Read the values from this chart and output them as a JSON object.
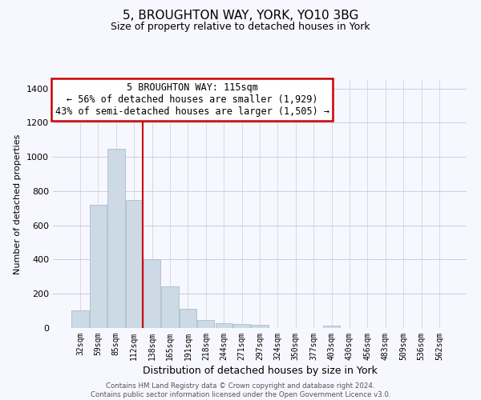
{
  "title": "5, BROUGHTON WAY, YORK, YO10 3BG",
  "subtitle": "Size of property relative to detached houses in York",
  "xlabel": "Distribution of detached houses by size in York",
  "ylabel": "Number of detached properties",
  "bar_color": "#cdd9e5",
  "bar_edge_color": "#a8bfcc",
  "categories": [
    "32sqm",
    "59sqm",
    "85sqm",
    "112sqm",
    "138sqm",
    "165sqm",
    "191sqm",
    "218sqm",
    "244sqm",
    "271sqm",
    "297sqm",
    "324sqm",
    "350sqm",
    "377sqm",
    "403sqm",
    "430sqm",
    "456sqm",
    "483sqm",
    "509sqm",
    "536sqm",
    "562sqm"
  ],
  "values": [
    105,
    720,
    1050,
    750,
    400,
    245,
    110,
    48,
    27,
    25,
    20,
    0,
    0,
    0,
    15,
    0,
    0,
    0,
    0,
    0,
    0
  ],
  "ylim": [
    0,
    1450
  ],
  "yticks": [
    0,
    200,
    400,
    600,
    800,
    1000,
    1200,
    1400
  ],
  "annotation_title": "5 BROUGHTON WAY: 115sqm",
  "annotation_line1": "← 56% of detached houses are smaller (1,929)",
  "annotation_line2": "43% of semi-detached houses are larger (1,505) →",
  "annotation_box_color": "white",
  "annotation_border_color": "#cc0000",
  "property_line_index": 3,
  "footer_line1": "Contains HM Land Registry data © Crown copyright and database right 2024.",
  "footer_line2": "Contains public sector information licensed under the Open Government Licence v3.0.",
  "grid_color": "#ccccdd",
  "background_color": "#f7f7ff",
  "title_fontsize": 11,
  "subtitle_fontsize": 9
}
